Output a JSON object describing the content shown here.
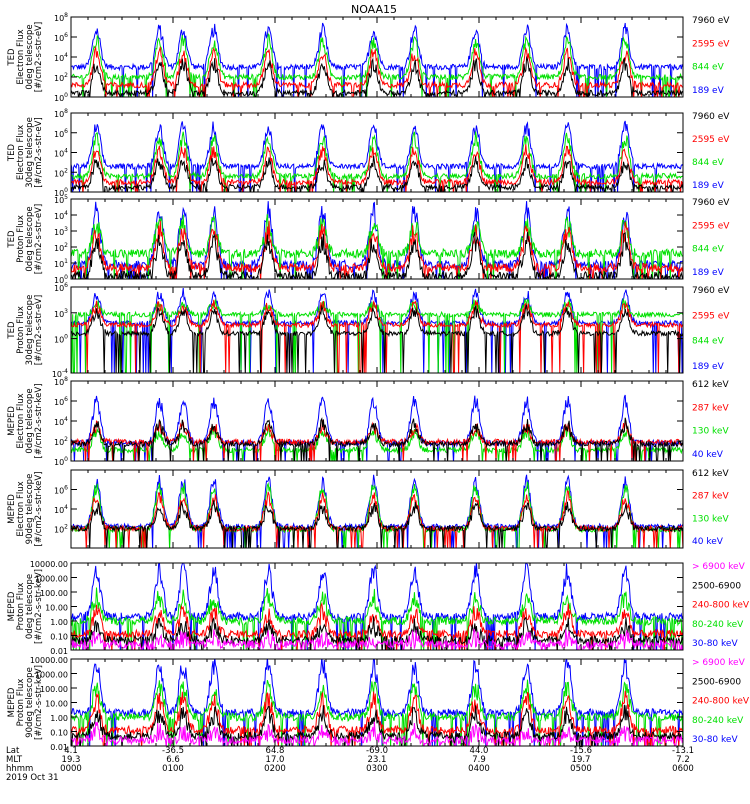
{
  "title": "NOAA15",
  "colors": {
    "black": "#000000",
    "red": "#ff0000",
    "green": "#00e000",
    "blue": "#0000ff",
    "magenta": "#ff00ff",
    "axis": "#000000"
  },
  "chart_data": [
    {
      "type": "line",
      "ylabel": [
        "TED",
        "Electron Flux",
        "0deg telescope",
        "[#/cm2-s-str-eV]"
      ],
      "yscale": "log",
      "ylim": [
        1,
        100000000
      ],
      "yticks": [
        {
          "value": 1,
          "label": "10",
          "sup": "0"
        },
        {
          "value": 100,
          "label": "10",
          "sup": "2"
        },
        {
          "value": 10000,
          "label": "10",
          "sup": "4"
        },
        {
          "value": 1000000,
          "label": "10",
          "sup": "6"
        },
        {
          "value": 100000000,
          "label": "10",
          "sup": "8"
        }
      ],
      "legend": [
        {
          "label": "7960 eV",
          "color": "#000000"
        },
        {
          "label": "2595 eV",
          "color": "#ff0000"
        },
        {
          "label": "844 eV",
          "color": "#00e000"
        },
        {
          "label": "189 eV",
          "color": "#0000ff"
        }
      ],
      "series": [
        {
          "color": "#0000ff",
          "base": 3,
          "peak": 6.7
        },
        {
          "color": "#00e000",
          "base": 2.0,
          "peak": 5.6
        },
        {
          "color": "#ff0000",
          "base": 1.2,
          "peak": 4.4
        },
        {
          "color": "#000000",
          "base": 0.4,
          "peak": 3.3
        }
      ]
    },
    {
      "type": "line",
      "ylabel": [
        "TED",
        "Electron Flux",
        "30deg telescope",
        "[#/cm2-s-str-eV]"
      ],
      "yscale": "log",
      "ylim": [
        1,
        100000000
      ],
      "yticks": [
        {
          "value": 1,
          "label": "10",
          "sup": "0"
        },
        {
          "value": 100,
          "label": "10",
          "sup": "2"
        },
        {
          "value": 10000,
          "label": "10",
          "sup": "4"
        },
        {
          "value": 1000000,
          "label": "10",
          "sup": "6"
        },
        {
          "value": 100000000,
          "label": "10",
          "sup": "8"
        }
      ],
      "legend": [
        {
          "label": "7960 eV",
          "color": "#000000"
        },
        {
          "label": "2595 eV",
          "color": "#ff0000"
        },
        {
          "label": "844 eV",
          "color": "#00e000"
        },
        {
          "label": "189 eV",
          "color": "#0000ff"
        }
      ],
      "series": [
        {
          "color": "#0000ff",
          "base": 2.6,
          "peak": 6.6
        },
        {
          "color": "#00e000",
          "base": 1.6,
          "peak": 5.4
        },
        {
          "color": "#ff0000",
          "base": 1.0,
          "peak": 4.2
        },
        {
          "color": "#000000",
          "base": 0.5,
          "peak": 3.0
        }
      ]
    },
    {
      "type": "line",
      "ylabel": [
        "TED",
        "Proton Flux",
        "0deg telescope",
        "[#/cm2-s-str-eV]"
      ],
      "yscale": "log",
      "ylim": [
        1,
        100000
      ],
      "yticks": [
        {
          "value": 1,
          "label": "10",
          "sup": "0"
        },
        {
          "value": 10,
          "label": "10",
          "sup": "1"
        },
        {
          "value": 100,
          "label": "10",
          "sup": "2"
        },
        {
          "value": 1000,
          "label": "10",
          "sup": "3"
        },
        {
          "value": 10000,
          "label": "10",
          "sup": "4"
        },
        {
          "value": 100000,
          "label": "10",
          "sup": "5"
        }
      ],
      "legend": [
        {
          "label": "7960 eV",
          "color": "#000000"
        },
        {
          "label": "2595 eV",
          "color": "#ff0000"
        },
        {
          "label": "844 eV",
          "color": "#00e000"
        },
        {
          "label": "189 eV",
          "color": "#0000ff"
        }
      ],
      "series": [
        {
          "color": "#0000ff",
          "base": 0.9,
          "peak": 4.2
        },
        {
          "color": "#00e000",
          "base": 1.6,
          "peak": 3.4
        },
        {
          "color": "#ff0000",
          "base": 0.7,
          "peak": 3.0
        },
        {
          "color": "#000000",
          "base": 0.2,
          "peak": 2.4
        }
      ]
    },
    {
      "type": "line",
      "ylabel": [
        "TED",
        "Proton Flux",
        "30deg telescope",
        "[#/cm2-s-str-eV]"
      ],
      "yscale": "log",
      "ylim": [
        0.0001,
        1000000
      ],
      "yticks": [
        {
          "value": 0.0001,
          "label": "10",
          "sup": "-4"
        },
        {
          "value": 1,
          "label": "10",
          "sup": "0"
        },
        {
          "value": 1000,
          "label": "10",
          "sup": "3"
        },
        {
          "value": 1000000,
          "label": "10",
          "sup": "6"
        }
      ],
      "legend": [
        {
          "label": "7960 eV",
          "color": "#000000"
        },
        {
          "label": "2595 eV",
          "color": "#ff0000"
        },
        {
          "label": "844 eV",
          "color": "#00e000"
        },
        {
          "label": "189 eV",
          "color": "#0000ff"
        }
      ],
      "series": [
        {
          "color": "#0000ff",
          "base": 1.8,
          "peak": 5.2
        },
        {
          "color": "#00e000",
          "base": 2.8,
          "peak": 4.0
        },
        {
          "color": "#ff0000",
          "base": 1.6,
          "peak": 3.8
        },
        {
          "color": "#000000",
          "base": 0.6,
          "peak": 3.2
        }
      ]
    },
    {
      "type": "line",
      "ylabel": [
        "MEPED",
        "Electron Flux",
        "0deg telescope",
        "[#/cm2-s-str-keV]"
      ],
      "yscale": "log",
      "ylim": [
        1,
        100000000
      ],
      "yticks": [
        {
          "value": 1,
          "label": "10",
          "sup": "0"
        },
        {
          "value": 100,
          "label": "10",
          "sup": "2"
        },
        {
          "value": 10000,
          "label": "10",
          "sup": "4"
        },
        {
          "value": 1000000,
          "label": "10",
          "sup": "6"
        },
        {
          "value": 100000000,
          "label": "10",
          "sup": "8"
        }
      ],
      "legend": [
        {
          "label": "612 keV",
          "color": "#000000"
        },
        {
          "label": "287 keV",
          "color": "#ff0000"
        },
        {
          "label": "130 keV",
          "color": "#00e000"
        },
        {
          "label": "40 keV",
          "color": "#0000ff"
        }
      ],
      "series": [
        {
          "color": "#0000ff",
          "base": 1.8,
          "peak": 6.0
        },
        {
          "color": "#00e000",
          "base": 1.1,
          "peak": 3.0
        },
        {
          "color": "#ff0000",
          "base": 1.9,
          "peak": 3.4
        },
        {
          "color": "#000000",
          "base": 1.7,
          "peak": 3.6
        }
      ]
    },
    {
      "type": "line",
      "ylabel": [
        "MEPED",
        "Electron Flux",
        "90deg telescope",
        "[#/cm2-s-str-keV]"
      ],
      "yscale": "log",
      "ylim": [
        1,
        100000000
      ],
      "yticks": [
        {
          "value": 100,
          "label": "10",
          "sup": "2"
        },
        {
          "value": 10000,
          "label": "10",
          "sup": "4"
        },
        {
          "value": 1000000,
          "label": "10",
          "sup": "6"
        }
      ],
      "legend": [
        {
          "label": "612 keV",
          "color": "#000000"
        },
        {
          "label": "287 keV",
          "color": "#ff0000"
        },
        {
          "label": "130 keV",
          "color": "#00e000"
        },
        {
          "label": "40 keV",
          "color": "#0000ff"
        }
      ],
      "series": [
        {
          "color": "#0000ff",
          "base": 2.2,
          "peak": 6.8
        },
        {
          "color": "#00e000",
          "base": 1.9,
          "peak": 6.2
        },
        {
          "color": "#ff0000",
          "base": 2.0,
          "peak": 5.2
        },
        {
          "color": "#000000",
          "base": 2.0,
          "peak": 4.2
        }
      ]
    },
    {
      "type": "line",
      "ylabel": [
        "MEPED",
        "Proton Flux",
        "0deg telescope",
        "[#/cm2-s-str-keV]"
      ],
      "yscale": "log",
      "ylim": [
        0.01,
        10000
      ],
      "yticks": [
        {
          "value": 0.01,
          "label": "0.01"
        },
        {
          "value": 0.1,
          "label": "0.10"
        },
        {
          "value": 1,
          "label": "1.00"
        },
        {
          "value": 10,
          "label": "10.00"
        },
        {
          "value": 100,
          "label": "100.00"
        },
        {
          "value": 1000,
          "label": "1000.00"
        },
        {
          "value": 10000,
          "label": "10000.00"
        }
      ],
      "legend": [
        {
          "label": "> 6900 keV",
          "color": "#ff00ff"
        },
        {
          "label": "2500-6900",
          "color": "#000000"
        },
        {
          "label": "240-800 keV",
          "color": "#ff0000"
        },
        {
          "label": "80-240 keV",
          "color": "#00e000"
        },
        {
          "label": "30-80 keV",
          "color": "#0000ff"
        }
      ],
      "series": [
        {
          "color": "#0000ff",
          "base": 0.3,
          "peak": 3.5
        },
        {
          "color": "#00e000",
          "base": 0.0,
          "peak": 1.6
        },
        {
          "color": "#ff0000",
          "base": -0.9,
          "peak": 0.6
        },
        {
          "color": "#000000",
          "base": -1.3,
          "peak": -0.4
        },
        {
          "color": "#ff00ff",
          "base": -1.6,
          "peak": -1.2
        }
      ]
    },
    {
      "type": "line",
      "ylabel": [
        "MEPED",
        "Proton Flux",
        "90deg telescope",
        "[#/cm2-s-str-keV]"
      ],
      "yscale": "log",
      "ylim": [
        0.01,
        10000
      ],
      "yticks": [
        {
          "value": 0.01,
          "label": "0.01"
        },
        {
          "value": 0.1,
          "label": "0.10"
        },
        {
          "value": 1,
          "label": "1.00"
        },
        {
          "value": 10,
          "label": "10.00"
        },
        {
          "value": 100,
          "label": "100.00"
        },
        {
          "value": 1000,
          "label": "1000.00"
        },
        {
          "value": 10000,
          "label": "10000.00"
        }
      ],
      "legend": [
        {
          "label": "> 6900 keV",
          "color": "#ff00ff"
        },
        {
          "label": "2500-6900",
          "color": "#000000"
        },
        {
          "label": "240-800 keV",
          "color": "#ff0000"
        },
        {
          "label": "80-240 keV",
          "color": "#00e000"
        },
        {
          "label": "30-80 keV",
          "color": "#0000ff"
        }
      ],
      "series": [
        {
          "color": "#0000ff",
          "base": 0.3,
          "peak": 3.6
        },
        {
          "color": "#00e000",
          "base": 0.0,
          "peak": 2.0
        },
        {
          "color": "#ff0000",
          "base": -0.9,
          "peak": 1.2
        },
        {
          "color": "#000000",
          "base": -1.3,
          "peak": 0.2
        },
        {
          "color": "#ff00ff",
          "base": -1.6,
          "peak": -1.0
        }
      ]
    }
  ],
  "x_axis": {
    "row_labels": [
      "Lat",
      "MLT",
      "hhmm",
      "2019 Oct 31"
    ],
    "xlim_minutes": [
      0,
      360
    ],
    "ticks": [
      {
        "minute": 0,
        "lat": "4.1",
        "mlt": "19.3",
        "hhmm": "0000"
      },
      {
        "minute": 60,
        "lat": "-36.5",
        "mlt": "6.6",
        "hhmm": "0100"
      },
      {
        "minute": 120,
        "lat": "64.8",
        "mlt": "17.0",
        "hhmm": "0200"
      },
      {
        "minute": 180,
        "lat": "-69.0",
        "mlt": "23.1",
        "hhmm": "0300"
      },
      {
        "minute": 240,
        "lat": "44.0",
        "mlt": "7.9",
        "hhmm": "0400"
      },
      {
        "minute": 300,
        "lat": "-15.6",
        "mlt": "19.7",
        "hhmm": "0500"
      },
      {
        "minute": 360,
        "lat": "-13.1",
        "mlt": "7.2",
        "hhmm": "0600"
      }
    ],
    "pass_centers_minutes": [
      15,
      52,
      66,
      84,
      116,
      148,
      178,
      202,
      238,
      268,
      292,
      326
    ]
  }
}
